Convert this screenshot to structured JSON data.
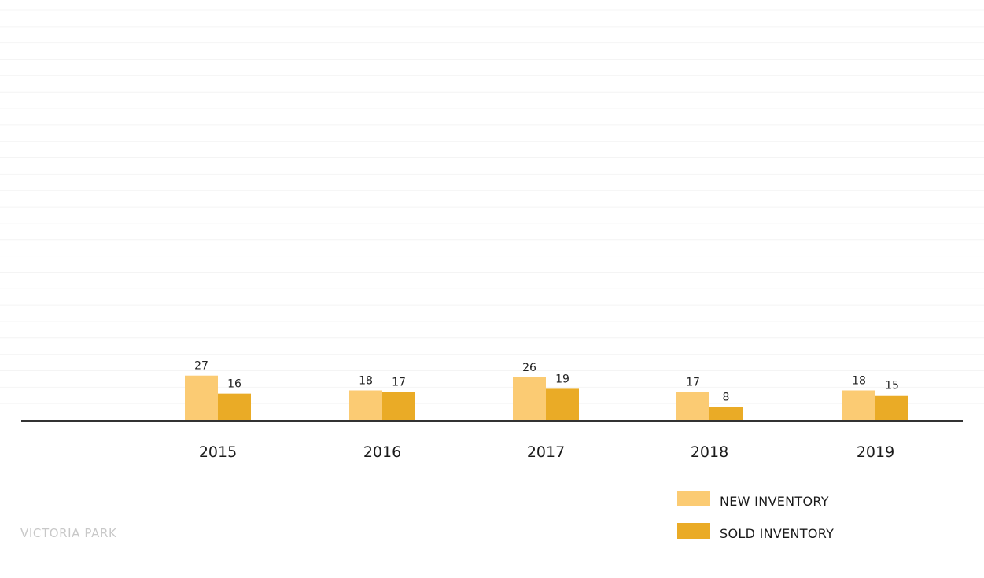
{
  "chart_data": {
    "type": "bar",
    "categories": [
      "2015",
      "2016",
      "2017",
      "2018",
      "2019"
    ],
    "series": [
      {
        "name": "NEW INVENTORY",
        "values": [
          27,
          18,
          26,
          17,
          18
        ],
        "color": "#FBCB73"
      },
      {
        "name": "SOLD INVENTORY",
        "values": [
          16,
          17,
          19,
          8,
          15
        ],
        "color": "#EAAB26"
      }
    ],
    "title": "",
    "xlabel": "",
    "ylabel": "",
    "ylim": [
      0,
      250
    ],
    "grid": true,
    "legend_position": "bottom-right",
    "data_labels": true
  },
  "footer": {
    "label": "VICTORIA PARK"
  },
  "colors": {
    "axis": "#333333",
    "grid": "#f4f4f4"
  }
}
